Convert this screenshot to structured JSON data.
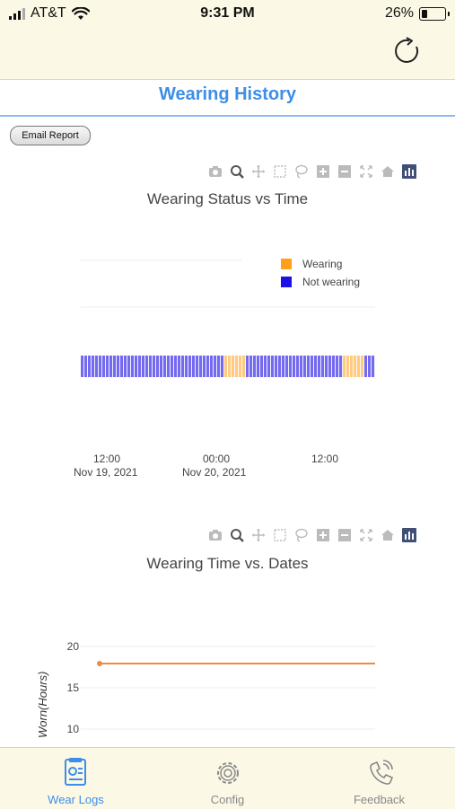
{
  "status_bar": {
    "carrier": "AT&T",
    "time": "9:31 PM",
    "battery": "26%",
    "battery_level": 0.26
  },
  "header": {
    "title": "Wearing History"
  },
  "actions": {
    "email_report_label": "Email Report"
  },
  "modebar_icons": [
    "camera-icon",
    "zoom-icon",
    "pan-icon",
    "box-select-icon",
    "lasso-icon",
    "zoom-in-icon",
    "zoom-out-icon",
    "autoscale-icon",
    "home-icon",
    "plotly-logo-icon"
  ],
  "chart_data": [
    {
      "type": "bar",
      "title": "Wearing Status vs Time",
      "legend": {
        "position": "top-right",
        "items": [
          {
            "label": "Wearing",
            "color": "#ff9f1c"
          },
          {
            "label": "Not wearing",
            "color": "#1e0fe6"
          }
        ]
      },
      "x_ticks": [
        {
          "line1": "12:00",
          "line2": "Nov 19, 2021"
        },
        {
          "line1": "00:00",
          "line2": "Nov 20, 2021"
        },
        {
          "line1": "12:00",
          "line2": ""
        }
      ],
      "x_range": [
        "2021-11-19 09:00",
        "2021-11-20 16:00"
      ],
      "status_pattern": [
        "Not wearing",
        "Not wearing",
        "Not wearing",
        "Not wearing",
        "Not wearing",
        "Not wearing",
        "Not wearing",
        "Not wearing",
        "Not wearing",
        "Not wearing",
        "Not wearing",
        "Not wearing",
        "Wearing",
        "Wearing",
        "Not wearing",
        "Not wearing",
        "Not wearing",
        "Not wearing",
        "Not wearing",
        "Not wearing",
        "Not wearing",
        "Not wearing",
        "Wearing",
        "Wearing",
        "Not wearing"
      ],
      "grid": true
    },
    {
      "type": "line",
      "title": "Wearing Time vs. Dates",
      "ylabel": "Worn(Hours)",
      "y_ticks": [
        20,
        15,
        10
      ],
      "ylim": [
        8,
        21
      ],
      "series": [
        {
          "values": [
            18,
            18
          ],
          "color": "#f08a3c"
        }
      ],
      "grid": true
    }
  ],
  "tab_bar": {
    "tabs": [
      {
        "label": "Wear Logs",
        "icon": "wear-logs-icon",
        "active": true
      },
      {
        "label": "Config",
        "icon": "gear-icon",
        "active": false
      },
      {
        "label": "Feedback",
        "icon": "phone-icon",
        "active": false
      }
    ]
  }
}
